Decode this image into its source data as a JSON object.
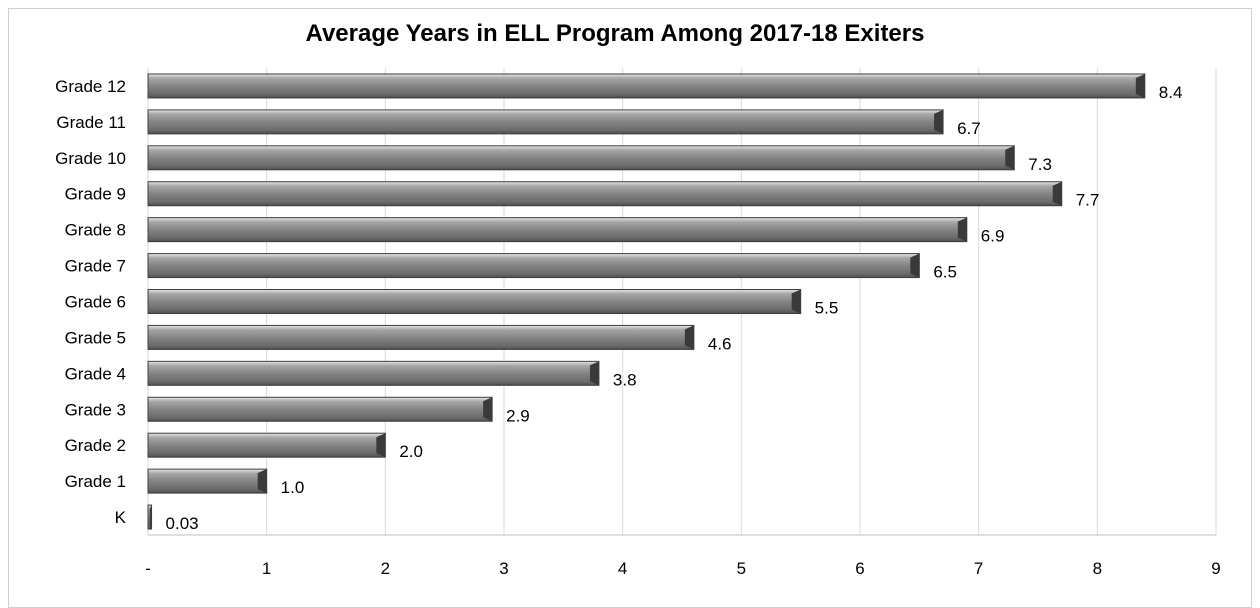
{
  "chart_data": {
    "type": "bar",
    "orientation": "horizontal",
    "title": "Average Years in ELL Program Among 2017-18 Exiters",
    "xlabel": "",
    "ylabel": "",
    "categories": [
      "Grade 12",
      "Grade 11",
      "Grade 10",
      "Grade 9",
      "Grade 8",
      "Grade 7",
      "Grade 6",
      "Grade 5",
      "Grade 4",
      "Grade 3",
      "Grade 2",
      "Grade 1",
      "K"
    ],
    "values": [
      8.4,
      6.7,
      7.3,
      7.7,
      6.9,
      6.5,
      5.5,
      4.6,
      3.8,
      2.9,
      2.0,
      1.0,
      0.03
    ],
    "value_labels": [
      "8.4",
      "6.7",
      "7.3",
      "7.7",
      "6.9",
      "6.5",
      "5.5",
      "4.6",
      "3.8",
      "2.9",
      "2.0",
      "1.0",
      "0.03"
    ],
    "xlim": [
      0,
      9
    ],
    "x_ticks": [
      "-",
      "1",
      "2",
      "3",
      "4",
      "5",
      "6",
      "7",
      "8",
      "9"
    ],
    "grid": "vertical",
    "legend": "none",
    "colors": {
      "bar": "#7f7f7f",
      "bar_light": "#b3b3b3",
      "bar_dark": "#4a4a4a",
      "grid": "#d9d9d9",
      "axis": "#bfbfbf"
    }
  }
}
